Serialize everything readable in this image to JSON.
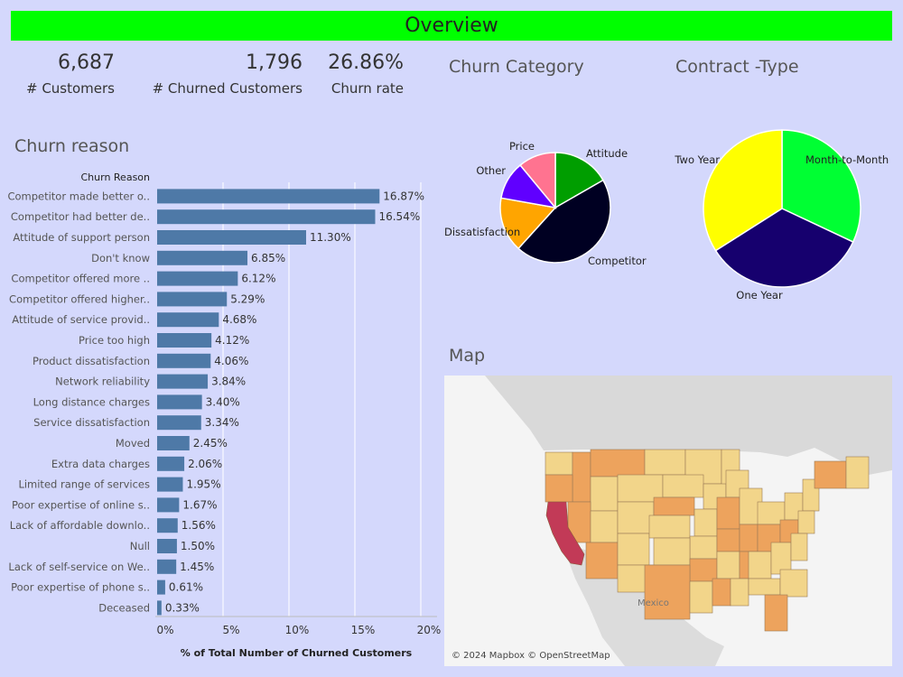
{
  "header": {
    "title": "Overview"
  },
  "kpis": [
    {
      "value": "6,687",
      "label": "# Customers"
    },
    {
      "value": "1,796",
      "label": "# Churned Customers"
    },
    {
      "value": "26.86%",
      "label": "Churn rate"
    }
  ],
  "chart_data": [
    {
      "type": "bar",
      "orientation": "horizontal",
      "title": "Churn reason",
      "category_header": "Churn Reason",
      "xlabel": "% of Total Number of Churned Customers",
      "xlim": [
        0,
        20
      ],
      "x_ticks": [
        "0%",
        "5%",
        "10%",
        "15%",
        "20%"
      ],
      "grid": true,
      "color": "#4e79a7",
      "categories": [
        "Competitor made better o..",
        "Competitor had better de..",
        "Attitude of support person",
        "Don't know",
        "Competitor offered more ..",
        "Competitor offered higher..",
        "Attitude of service provid..",
        "Price too high",
        "Product dissatisfaction",
        "Network reliability",
        "Long distance charges",
        "Service dissatisfaction",
        "Moved",
        "Extra data charges",
        "Limited range of services",
        "Poor expertise of online s..",
        "Lack of affordable downlo..",
        "Null",
        "Lack of self-service on We..",
        "Poor expertise of phone s..",
        "Deceased"
      ],
      "values": [
        16.87,
        16.54,
        11.3,
        6.85,
        6.12,
        5.29,
        4.68,
        4.12,
        4.06,
        3.84,
        3.4,
        3.34,
        2.45,
        2.06,
        1.95,
        1.67,
        1.56,
        1.5,
        1.45,
        0.61,
        0.33
      ],
      "labels": [
        "16.87%",
        "16.54%",
        "11.30%",
        "6.85%",
        "6.12%",
        "5.29%",
        "4.68%",
        "4.12%",
        "4.06%",
        "3.84%",
        "3.40%",
        "3.34%",
        "2.45%",
        "2.06%",
        "1.95%",
        "1.67%",
        "1.56%",
        "1.50%",
        "1.45%",
        "0.61%",
        "0.33%"
      ]
    },
    {
      "type": "pie",
      "title": "Churn Category",
      "slices": [
        {
          "name": "Attitude",
          "value": 16.7,
          "color": "#009e00"
        },
        {
          "name": "Competitor",
          "value": 45.0,
          "color": "#000022"
        },
        {
          "name": "Dissatisfaction",
          "value": 16.1,
          "color": "#ffa500"
        },
        {
          "name": "Other",
          "value": 11.2,
          "color": "#6000ff"
        },
        {
          "name": "Price",
          "value": 11.0,
          "color": "#ff7390"
        }
      ]
    },
    {
      "type": "pie",
      "title": "Contract -Type",
      "slices": [
        {
          "name": "Month-to-Month",
          "value": 32.0,
          "color": "#00ff33"
        },
        {
          "name": "One Year",
          "value": 34.0,
          "color": "#16006e"
        },
        {
          "name": "Two Year",
          "value": 34.0,
          "color": "#ffff00"
        }
      ]
    }
  ],
  "map": {
    "title": "Map",
    "place_label": "Mexico",
    "credit": "© 2024 Mapbox © OpenStreetMap",
    "colors": {
      "low": "#f2d58a",
      "mid": "#eda35d",
      "high": "#c23a57",
      "land": "#d9d9d9",
      "water": "#f4f4f4"
    }
  }
}
